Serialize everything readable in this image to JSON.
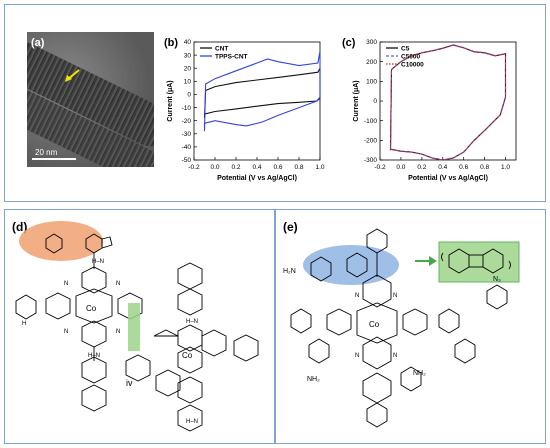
{
  "panel_a": {
    "label": "(a)",
    "scale_text": "20 nm"
  },
  "chart_data": [
    {
      "type": "line",
      "panel_label": "(b)",
      "xlabel": "Potential (V vs Ag/AgCl)",
      "ylabel": "Current (μA)",
      "xlim": [
        -0.2,
        1.0
      ],
      "ylim": [
        -50,
        40
      ],
      "xticks": [
        -0.2,
        0.0,
        0.2,
        0.4,
        0.6,
        0.8,
        1.0
      ],
      "yticks": [
        -50,
        -40,
        -30,
        -20,
        -10,
        0,
        10,
        20,
        30,
        40
      ],
      "xtick_labels": [
        "-0.2",
        "0.0",
        "0.2",
        "0.4",
        "0.6",
        "0.8",
        "1.0"
      ],
      "ytick_labels": [
        "-50",
        "-40",
        "-30",
        "-20",
        "-10",
        "0",
        "10",
        "20",
        "30",
        "40"
      ],
      "legend": "top-left",
      "series": [
        {
          "name": "CNT",
          "color": "#111111",
          "x": [
            -0.1,
            -0.09,
            0.0,
            0.2,
            0.4,
            0.6,
            0.8,
            0.98,
            1.0,
            1.0,
            0.97,
            0.8,
            0.6,
            0.4,
            0.2,
            0.0,
            -0.1,
            -0.1
          ],
          "y": [
            -18,
            3,
            6,
            9,
            11,
            13,
            15,
            17,
            20,
            -3,
            -5,
            -6,
            -7,
            -9,
            -11,
            -13,
            -15,
            -18
          ]
        },
        {
          "name": "TPPS-CNT",
          "color": "#3344dd",
          "x": [
            -0.1,
            -0.09,
            0.0,
            0.2,
            0.4,
            0.5,
            0.6,
            0.8,
            0.98,
            1.0,
            1.0,
            0.97,
            0.8,
            0.6,
            0.45,
            0.3,
            0.2,
            0.0,
            -0.1,
            -0.1
          ],
          "y": [
            -28,
            8,
            12,
            18,
            24,
            27,
            25,
            22,
            24,
            33,
            -2,
            -5,
            -10,
            -16,
            -21,
            -24,
            -23,
            -20,
            -22,
            -28
          ]
        }
      ]
    },
    {
      "type": "line",
      "panel_label": "(c)",
      "xlabel": "Potential (V vs Ag/AgCl)",
      "ylabel": "Current (μA)",
      "xlim": [
        -0.2,
        1.1
      ],
      "ylim": [
        -300,
        300
      ],
      "xticks": [
        -0.2,
        0.0,
        0.2,
        0.4,
        0.6,
        0.8,
        1.0
      ],
      "yticks": [
        -300,
        -200,
        -100,
        0,
        100,
        200,
        300
      ],
      "xtick_labels": [
        "-0.2",
        "0.0",
        "0.2",
        "0.4",
        "0.6",
        "0.8",
        "1.0"
      ],
      "ytick_labels": [
        "-300",
        "-200",
        "-100",
        "0",
        "100",
        "200",
        "300"
      ],
      "legend": "top-left",
      "series": [
        {
          "name": "C5",
          "color": "#111111",
          "x": [
            -0.1,
            -0.09,
            0.0,
            0.1,
            0.2,
            0.3,
            0.4,
            0.5,
            0.6,
            0.7,
            0.8,
            0.9,
            1.0,
            1.0,
            0.95,
            0.8,
            0.7,
            0.6,
            0.5,
            0.4,
            0.3,
            0.2,
            0.1,
            0.0,
            -0.1,
            -0.1
          ],
          "y": [
            -250,
            160,
            200,
            230,
            245,
            255,
            268,
            285,
            270,
            250,
            245,
            230,
            240,
            20,
            -70,
            -150,
            -200,
            -260,
            -290,
            -300,
            -290,
            -270,
            -260,
            -255,
            -245,
            -250
          ]
        },
        {
          "name": "C5000",
          "color": "#5a5adc",
          "x": [
            -0.1,
            -0.09,
            0.0,
            0.1,
            0.2,
            0.3,
            0.4,
            0.5,
            0.6,
            0.7,
            0.8,
            0.9,
            1.0,
            1.0,
            0.95,
            0.8,
            0.7,
            0.6,
            0.5,
            0.4,
            0.3,
            0.2,
            0.1,
            0.0,
            -0.1,
            -0.1
          ],
          "y": [
            -250,
            160,
            200,
            230,
            245,
            256,
            269,
            286,
            271,
            251,
            246,
            231,
            241,
            20,
            -70,
            -150,
            -200,
            -260,
            -290,
            -300,
            -290,
            -270,
            -260,
            -255,
            -245,
            -250
          ]
        },
        {
          "name": "C10000",
          "color": "#cc2222",
          "x": [
            -0.1,
            -0.09,
            0.0,
            0.1,
            0.2,
            0.3,
            0.4,
            0.5,
            0.6,
            0.7,
            0.8,
            0.9,
            1.0,
            1.0,
            0.95,
            0.8,
            0.7,
            0.6,
            0.5,
            0.4,
            0.3,
            0.2,
            0.1,
            0.0,
            -0.1,
            -0.1
          ],
          "y": [
            -250,
            160,
            200,
            230,
            245,
            255,
            268,
            285,
            270,
            250,
            245,
            230,
            240,
            20,
            -70,
            -150,
            -200,
            -260,
            -290,
            -300,
            -290,
            -270,
            -260,
            -255,
            -245,
            -250
          ]
        }
      ]
    }
  ],
  "panel_d": {
    "label": "(d)",
    "roman": "iv",
    "metal": "Co",
    "atom_n": "N",
    "atom_h": "H",
    "atom_nh": "H–N"
  },
  "panel_e": {
    "label": "(e)",
    "metal": "Co",
    "atom_n": "N",
    "nh2": "NH₂",
    "h2n": "H₂N",
    "n3": "N₃"
  },
  "colors": {
    "frame": "#7fa4cf",
    "orange_highlight": "#f0a070",
    "blue_highlight": "#8fb4e3",
    "green_highlight": "#9ed48a",
    "green_arrow": "#46a84c"
  }
}
